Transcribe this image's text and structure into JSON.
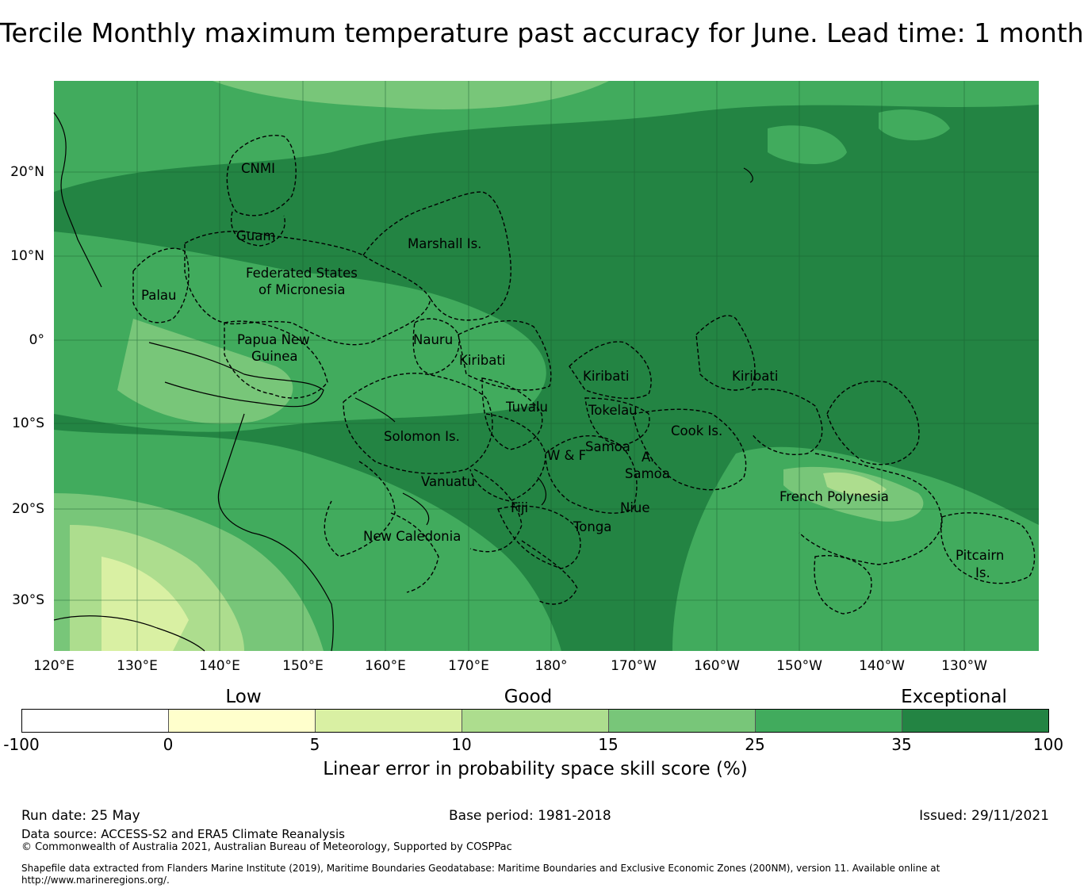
{
  "title": "Tercile Monthly maximum temperature past accuracy for June. Lead time: 1 month",
  "map": {
    "longitude_labels": [
      "120°E",
      "130°E",
      "140°E",
      "150°E",
      "160°E",
      "170°E",
      "180°",
      "170°W",
      "160°W",
      "150°W",
      "140°W",
      "130°W"
    ],
    "latitude_labels": [
      "20°N",
      "10°N",
      "0°",
      "10°S",
      "20°S",
      "30°S"
    ],
    "regions": [
      "CNMI",
      "Guam",
      "Marshall Is.",
      "Federated States",
      "of Micronesia",
      "Palau",
      "Papua New",
      "Guinea",
      "Nauru",
      "Kiribati",
      "Kiribati",
      "Kiribati",
      "Tuvalu",
      "Tokelau",
      "Cook Is.",
      "Solomon Is.",
      "Samoa",
      "W & F",
      "A.",
      "Samoa",
      "Vanuatu",
      "Fiji",
      "Niue",
      "Tonga",
      "French Polynesia",
      "New Caledonia",
      "Pitcairn",
      "Is."
    ]
  },
  "colorbar": {
    "categories": [
      "Low",
      "Good",
      "Exceptional"
    ],
    "ticks": [
      "-100",
      "0",
      "5",
      "10",
      "15",
      "25",
      "35",
      "100"
    ],
    "colors": [
      "#ffffff",
      "#ffffcc",
      "#d9f0a3",
      "#addd8e",
      "#78c679",
      "#41ab5d",
      "#238443"
    ],
    "label": "Linear error in probability space skill score (%)"
  },
  "footer": {
    "run_date": "Run date: 25 May",
    "base_period": "Base period: 1981-2018",
    "issued": "Issued: 29/11/2021",
    "data_source": "Data source: ACCESS-S2 and ERA5 Climate Reanalysis",
    "copyright": "© Commonwealth of Australia 2021, Australian Bureau of Meteorology, Supported by COSPPac",
    "shapefile": "Shapefile data extracted from Flanders Marine Institute (2019), Maritime Boundaries Geodatabase: Maritime Boundaries and Exclusive Economic Zones (200NM), version 11. Available online at http://www.marineregions.org/."
  }
}
